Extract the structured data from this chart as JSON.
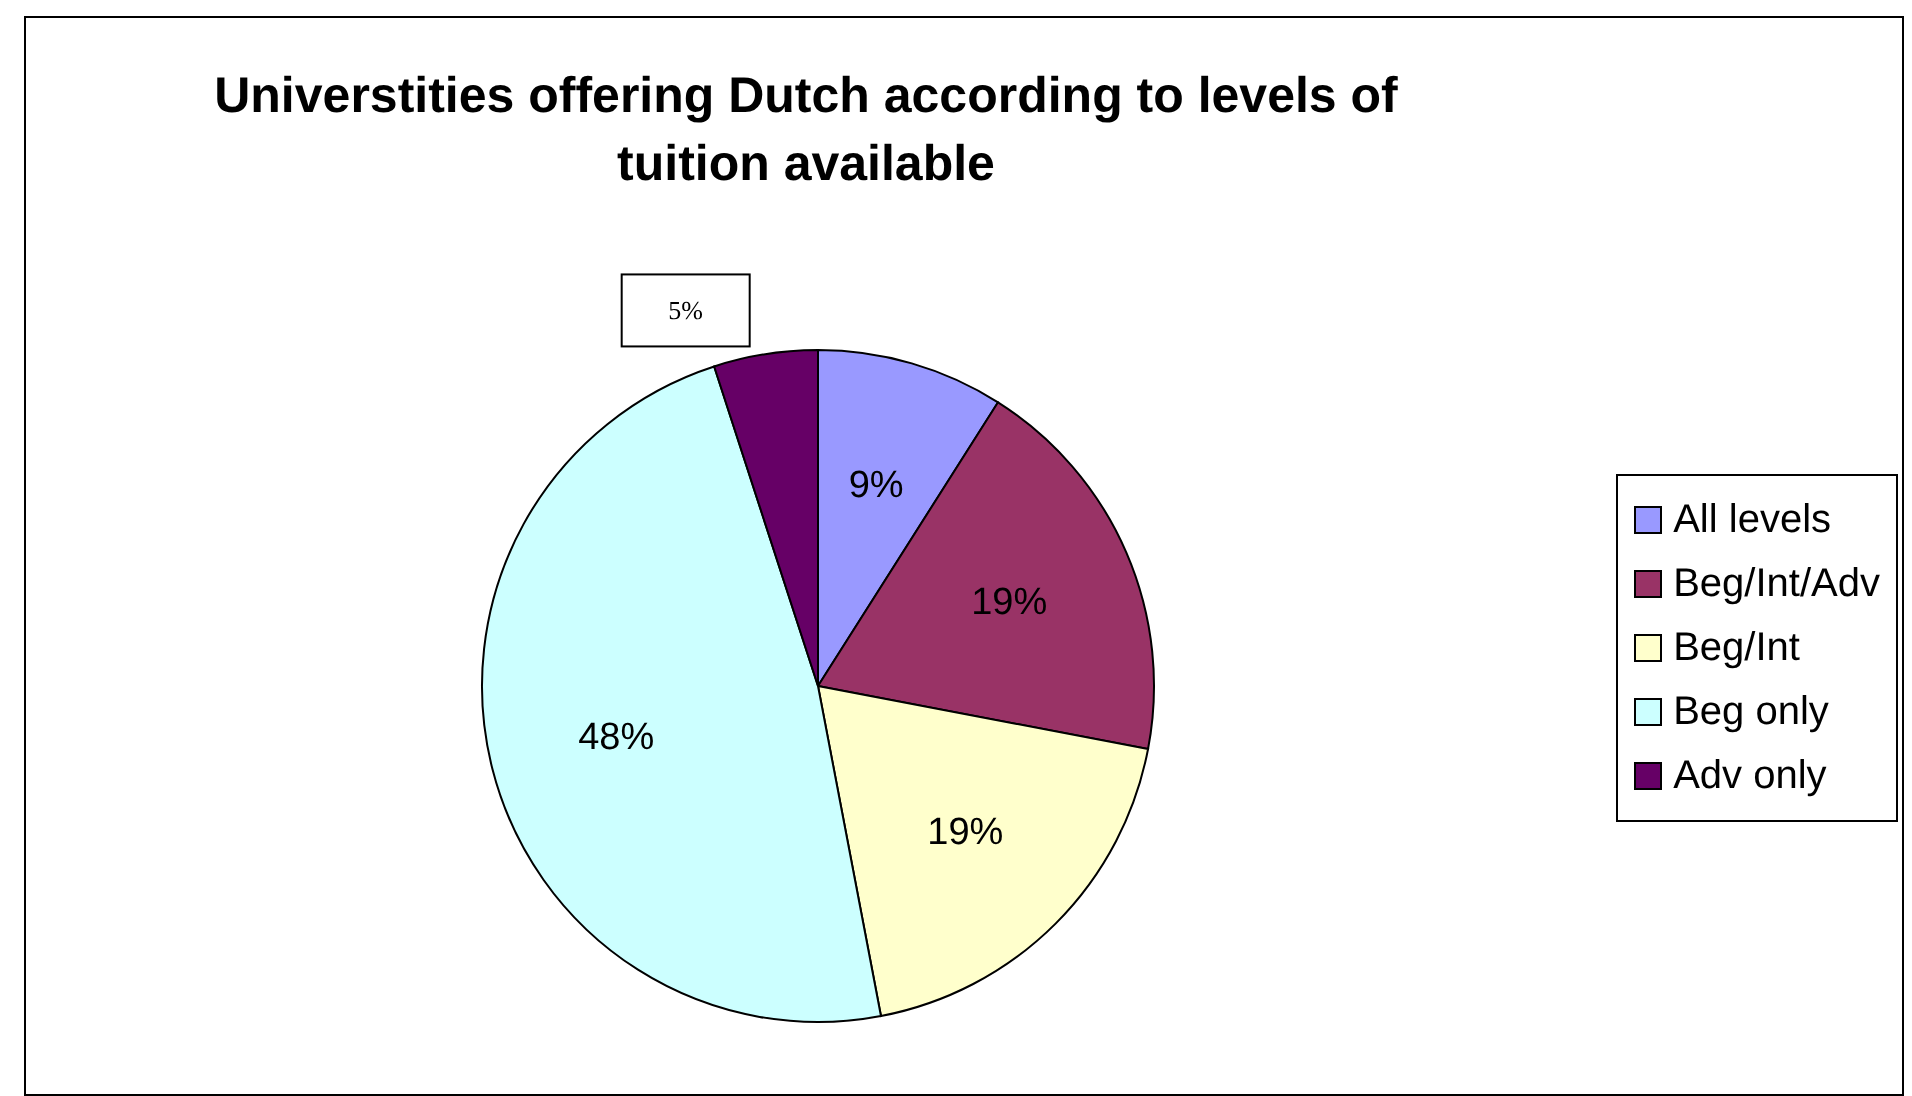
{
  "chart_data": {
    "type": "pie",
    "title": "Universtities offering Dutch according to levels of tuition available",
    "categories": [
      "All levels",
      "Beg/Int/Adv",
      "Beg/Int",
      "Beg only",
      "Adv only"
    ],
    "values": [
      9,
      19,
      19,
      48,
      5
    ],
    "colors": [
      "#9999ff",
      "#993366",
      "#ffffcc",
      "#ccffff",
      "#660066"
    ],
    "value_labels": [
      "9%",
      "19%",
      "19%",
      "48%",
      "5%"
    ],
    "legend": "right"
  }
}
